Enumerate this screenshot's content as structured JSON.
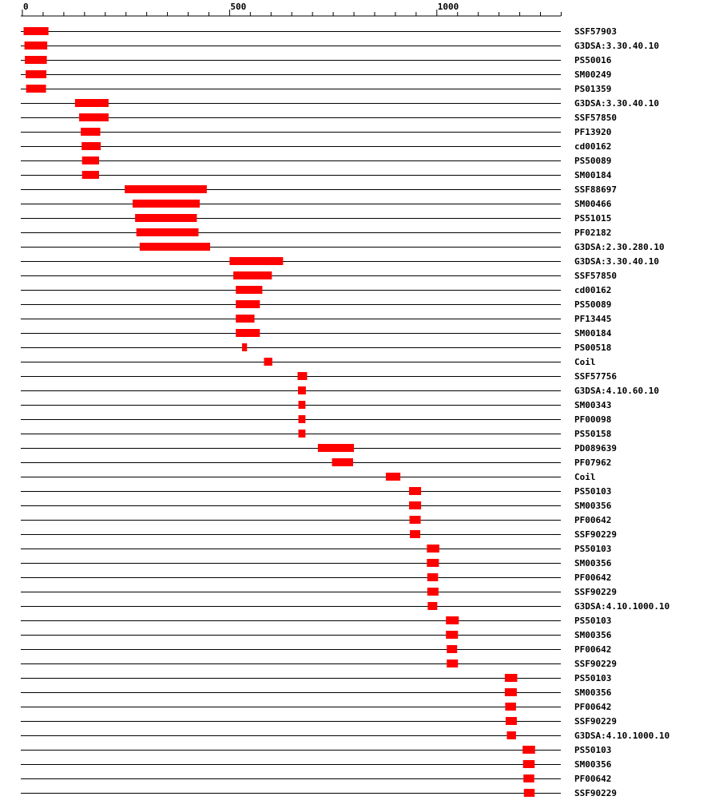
{
  "chart_data": {
    "type": "bar",
    "axis": {
      "range": [
        0,
        1300
      ],
      "major_ticks": [
        0,
        500,
        1000
      ],
      "minor_step": 50,
      "major_labels": [
        "0",
        "500",
        "1000"
      ]
    },
    "colors": {
      "feature": "#ff0000",
      "line": "#000000"
    },
    "rows": [
      {
        "label": "SSF57903",
        "start": 3,
        "end": 63
      },
      {
        "label": "G3DSA:3.30.40.10",
        "start": 5,
        "end": 60
      },
      {
        "label": "PS50016",
        "start": 6,
        "end": 59
      },
      {
        "label": "SM00249",
        "start": 8,
        "end": 58
      },
      {
        "label": "PS01359",
        "start": 9,
        "end": 57
      },
      {
        "label": "G3DSA:3.30.40.10",
        "start": 127,
        "end": 208
      },
      {
        "label": "SSF57850",
        "start": 137,
        "end": 208
      },
      {
        "label": "PF13920",
        "start": 141,
        "end": 188
      },
      {
        "label": "cd00162",
        "start": 143,
        "end": 189
      },
      {
        "label": "PS50089",
        "start": 144,
        "end": 185
      },
      {
        "label": "SM00184",
        "start": 144,
        "end": 185
      },
      {
        "label": "SSF88697",
        "start": 247,
        "end": 445
      },
      {
        "label": "SM00466",
        "start": 266,
        "end": 428
      },
      {
        "label": "PS51015",
        "start": 272,
        "end": 421
      },
      {
        "label": "PF02182",
        "start": 275,
        "end": 425
      },
      {
        "label": "G3DSA:2.30.280.10",
        "start": 283,
        "end": 453
      },
      {
        "label": "G3DSA:3.30.40.10",
        "start": 500,
        "end": 629
      },
      {
        "label": "SSF57850",
        "start": 509,
        "end": 602
      },
      {
        "label": "cd00162",
        "start": 515,
        "end": 579
      },
      {
        "label": "PS50089",
        "start": 515,
        "end": 573
      },
      {
        "label": "PF13445",
        "start": 515,
        "end": 560
      },
      {
        "label": "SM00184",
        "start": 515,
        "end": 573
      },
      {
        "label": "PS00518",
        "start": 530,
        "end": 542
      },
      {
        "label": "Coil",
        "start": 583,
        "end": 603
      },
      {
        "label": "SSF57756",
        "start": 664,
        "end": 687
      },
      {
        "label": "G3DSA:4.10.60.10",
        "start": 665,
        "end": 684
      },
      {
        "label": "SM00343",
        "start": 666,
        "end": 683
      },
      {
        "label": "PF00098",
        "start": 666,
        "end": 683
      },
      {
        "label": "PS50158",
        "start": 666,
        "end": 683
      },
      {
        "label": "PD089639",
        "start": 713,
        "end": 800
      },
      {
        "label": "PF07962",
        "start": 747,
        "end": 798
      },
      {
        "label": "Coil",
        "start": 877,
        "end": 912
      },
      {
        "label": "PS50103",
        "start": 933,
        "end": 962
      },
      {
        "label": "SM00356",
        "start": 933,
        "end": 962
      },
      {
        "label": "PF00642",
        "start": 934,
        "end": 961
      },
      {
        "label": "SSF90229",
        "start": 935,
        "end": 960
      },
      {
        "label": "PS50103",
        "start": 976,
        "end": 1006
      },
      {
        "label": "SM00356",
        "start": 976,
        "end": 1005
      },
      {
        "label": "PF00642",
        "start": 977,
        "end": 1003
      },
      {
        "label": "SSF90229",
        "start": 977,
        "end": 1004
      },
      {
        "label": "G3DSA:4.10.1000.10",
        "start": 978,
        "end": 1001
      },
      {
        "label": "PS50103",
        "start": 1022,
        "end": 1053
      },
      {
        "label": "SM00356",
        "start": 1022,
        "end": 1051
      },
      {
        "label": "PF00642",
        "start": 1024,
        "end": 1049
      },
      {
        "label": "SSF90229",
        "start": 1024,
        "end": 1051
      },
      {
        "label": "PS50103",
        "start": 1164,
        "end": 1194
      },
      {
        "label": "SM00356",
        "start": 1164,
        "end": 1193
      },
      {
        "label": "PF00642",
        "start": 1165,
        "end": 1191
      },
      {
        "label": "SSF90229",
        "start": 1166,
        "end": 1193
      },
      {
        "label": "G3DSA:4.10.1000.10",
        "start": 1169,
        "end": 1191
      },
      {
        "label": "PS50103",
        "start": 1207,
        "end": 1237
      },
      {
        "label": "SM00356",
        "start": 1208,
        "end": 1236
      },
      {
        "label": "PF00642",
        "start": 1209,
        "end": 1235
      },
      {
        "label": "SSF90229",
        "start": 1210,
        "end": 1236
      }
    ]
  }
}
